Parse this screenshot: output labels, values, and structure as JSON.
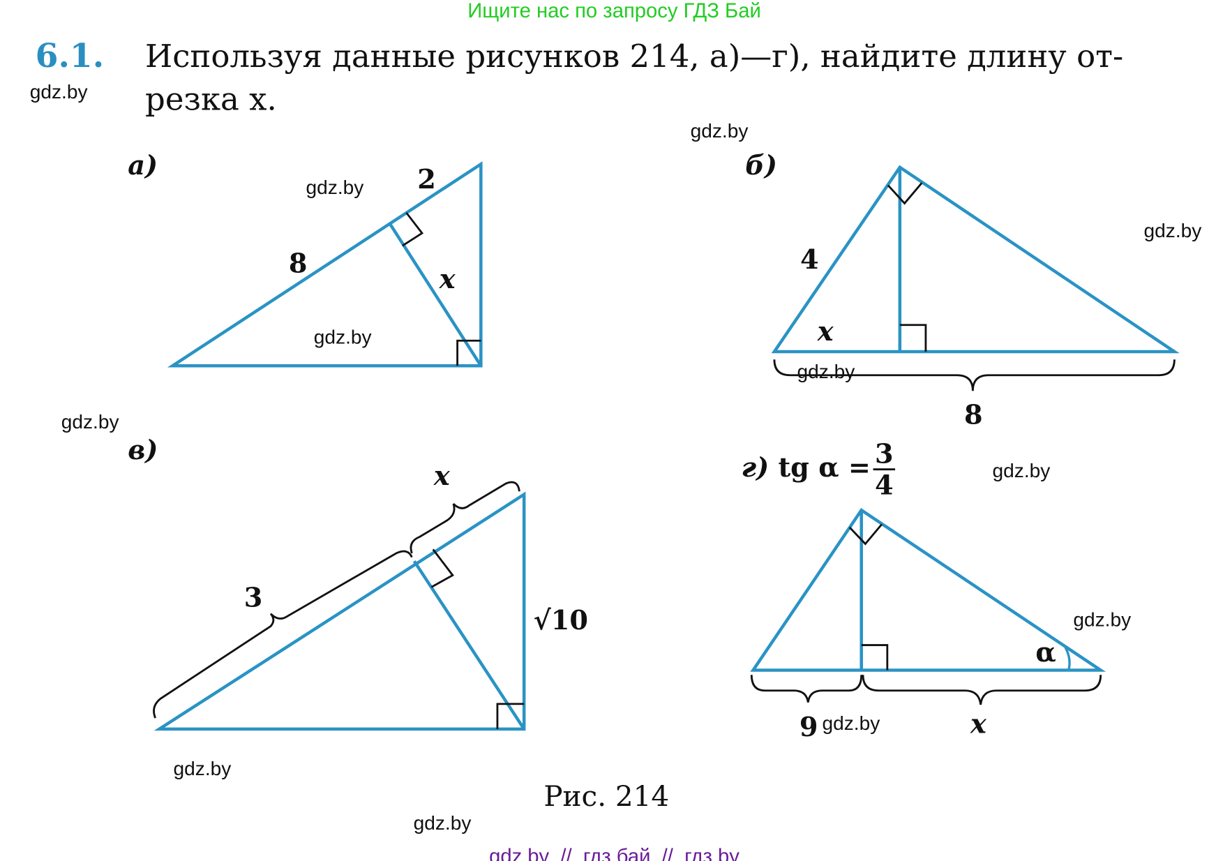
{
  "banner": "Ищите нас по запросу ГДЗ Бай",
  "problem": {
    "number": "6.1.",
    "text_line1": "Используя данные рисунков 214, а)—г), найдите длину от-",
    "text_line2": "резка x."
  },
  "watermark": "gdz.by",
  "figures": {
    "a": {
      "label": "а)",
      "seg_top": "2",
      "seg_hyp": "8",
      "unknown": "x"
    },
    "b": {
      "label": "б)",
      "side": "4",
      "unknown": "x",
      "base": "8"
    },
    "v": {
      "label": "в)",
      "unknown": "x",
      "seg": "3",
      "leg": "√10"
    },
    "g": {
      "label": "г)",
      "condition": "tg α =",
      "frac_num": "3",
      "frac_den": "4",
      "angle": "α",
      "seg": "9",
      "unknown": "x"
    }
  },
  "caption": "Рис. 214",
  "footer": "gdz by  //  гдз бай  //  гдз by",
  "colors": {
    "banner": "#22cc22",
    "figure_lines": "#2a93c4",
    "number": "#2a8fc0",
    "footer": "#6a1b9a"
  }
}
